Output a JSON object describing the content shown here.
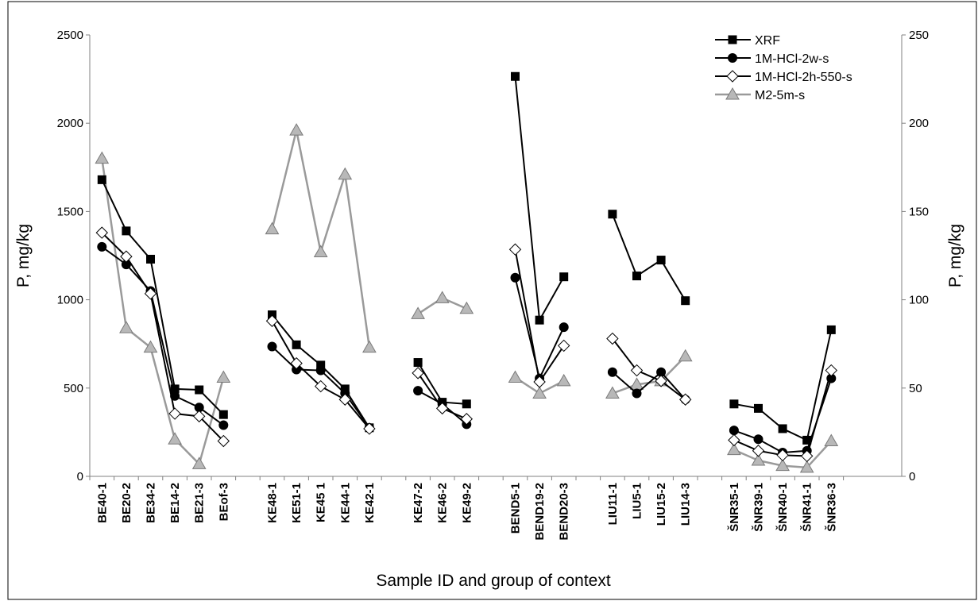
{
  "chart_data": {
    "type": "line",
    "xlabel": "Sample ID and group of context",
    "ylabel_left": "P, mg/kg",
    "ylabel_right": "P, mg/kg",
    "ylim_left": [
      0,
      2500
    ],
    "ylim_right": [
      0,
      250
    ],
    "yticks_left": [
      "0",
      "500",
      "1000",
      "1500",
      "2000",
      "2500"
    ],
    "yticks_right": [
      "0",
      "50",
      "100",
      "150",
      "200",
      "250"
    ],
    "legend_position": "top-right",
    "grid": false,
    "groups": [
      {
        "categories": [
          "BE40-1",
          "BE20-2",
          "BE34-2",
          "BE14-2",
          "BE21-3",
          "BEof-3"
        ],
        "series": {
          "XRF": [
            1680,
            1390,
            1230,
            495,
            490,
            350
          ],
          "1M-HCl-2w-s": [
            1300,
            1200,
            1050,
            455,
            390,
            290
          ],
          "1M-HCl-2h-550-s": [
            1380,
            1245,
            1035,
            355,
            340,
            200
          ],
          "M2-5m-s": [
            180,
            84,
            73,
            21,
            7,
            56
          ]
        }
      },
      {
        "categories": [
          "KE48-1",
          "KE51-1",
          "KE45 1",
          "KE44-1",
          "KE42-1"
        ],
        "series": {
          "XRF": [
            915,
            745,
            630,
            495,
            275
          ],
          "1M-HCl-2w-s": [
            735,
            605,
            600,
            470,
            275
          ],
          "1M-HCl-2h-550-s": [
            880,
            640,
            510,
            435,
            270
          ],
          "M2-5m-s": [
            140,
            196,
            127,
            171,
            73
          ]
        }
      },
      {
        "categories": [
          "KE47-2",
          "KE46-2",
          "KE49-2"
        ],
        "series": {
          "XRF": [
            645,
            420,
            410
          ],
          "1M-HCl-2w-s": [
            485,
            410,
            295
          ],
          "1M-HCl-2h-550-s": [
            585,
            385,
            325
          ],
          "M2-5m-s": [
            92,
            101,
            95
          ]
        }
      },
      {
        "categories": [
          "BEND5-1",
          "BEND19-2",
          "BEND20-3"
        ],
        "series": {
          "XRF": [
            2265,
            885,
            1130
          ],
          "1M-HCl-2w-s": [
            1125,
            555,
            845
          ],
          "1M-HCl-2h-550-s": [
            1285,
            535,
            740
          ],
          "M2-5m-s": [
            56,
            47,
            54
          ]
        }
      },
      {
        "categories": [
          "LIU11-1",
          "LIU5-1",
          "LIU15-2",
          "LIU14-3"
        ],
        "series": {
          "XRF": [
            1485,
            1135,
            1225,
            995
          ],
          "1M-HCl-2w-s": [
            590,
            470,
            590,
            435
          ],
          "1M-HCl-2h-550-s": [
            780,
            600,
            540,
            435
          ],
          "M2-5m-s": [
            47,
            52,
            54,
            68
          ]
        }
      },
      {
        "categories": [
          "ŠNR35-1",
          "ŠNR39-1",
          "ŠNR40-1",
          "ŠNR41-1",
          "ŠNR36-3"
        ],
        "series": {
          "XRF": [
            410,
            385,
            270,
            205,
            830
          ],
          "1M-HCl-2w-s": [
            260,
            210,
            135,
            145,
            555
          ],
          "1M-HCl-2h-550-s": [
            205,
            145,
            120,
            115,
            600
          ],
          "M2-5m-s": [
            15,
            9,
            6,
            5,
            20
          ]
        }
      }
    ],
    "series_info": [
      {
        "key": "XRF",
        "name": "XRF",
        "marker": "square",
        "color": "#000000",
        "fill": "#000000",
        "axis": "left"
      },
      {
        "key": "1M-HCl-2w-s",
        "name": "1M-HCl-2w-s",
        "marker": "circle",
        "color": "#000000",
        "fill": "#000000",
        "axis": "left"
      },
      {
        "key": "1M-HCl-2h-550-s",
        "name": "1M-HCl-2h-550-s",
        "marker": "diamond",
        "color": "#000000",
        "fill": "#ffffff",
        "axis": "left"
      },
      {
        "key": "M2-5m-s",
        "name": "M2-5m-s",
        "marker": "triangle",
        "color": "#9a9a9a",
        "fill": "#b8b8b8",
        "axis": "right"
      }
    ]
  }
}
